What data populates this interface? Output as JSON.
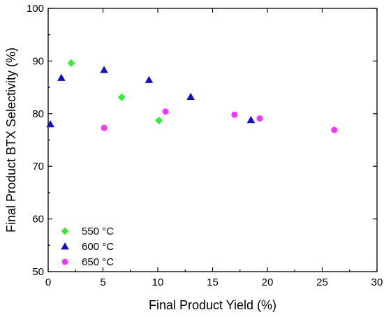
{
  "chart_data": {
    "type": "scatter",
    "title": "",
    "xlabel": "Final Product Yield (%)",
    "ylabel": "Final Product BTX Selectivity (%)",
    "xlim": [
      0,
      30
    ],
    "ylim": [
      50,
      100
    ],
    "x_ticks": [
      0,
      5,
      10,
      15,
      20,
      25,
      30
    ],
    "y_ticks": [
      50,
      60,
      70,
      80,
      90,
      100
    ],
    "grid": false,
    "legend_position": "bottom-left",
    "series": [
      {
        "name": "550 °C",
        "marker": "diamond",
        "color": "#33ee33",
        "points": [
          [
            2.1,
            89.6
          ],
          [
            6.7,
            83.1
          ],
          [
            10.1,
            78.7
          ]
        ]
      },
      {
        "name": "600 °C",
        "marker": "triangle",
        "color": "#1010cc",
        "points": [
          [
            0.2,
            78.0
          ],
          [
            1.2,
            86.8
          ],
          [
            5.1,
            88.3
          ],
          [
            9.2,
            86.4
          ],
          [
            13.0,
            83.2
          ],
          [
            18.5,
            78.8
          ]
        ]
      },
      {
        "name": "650 °C",
        "marker": "circle",
        "color": "#ff33ff",
        "points": [
          [
            5.1,
            77.3
          ],
          [
            10.7,
            80.4
          ],
          [
            17.0,
            79.8
          ],
          [
            19.3,
            79.1
          ],
          [
            26.1,
            76.9
          ]
        ]
      }
    ]
  }
}
